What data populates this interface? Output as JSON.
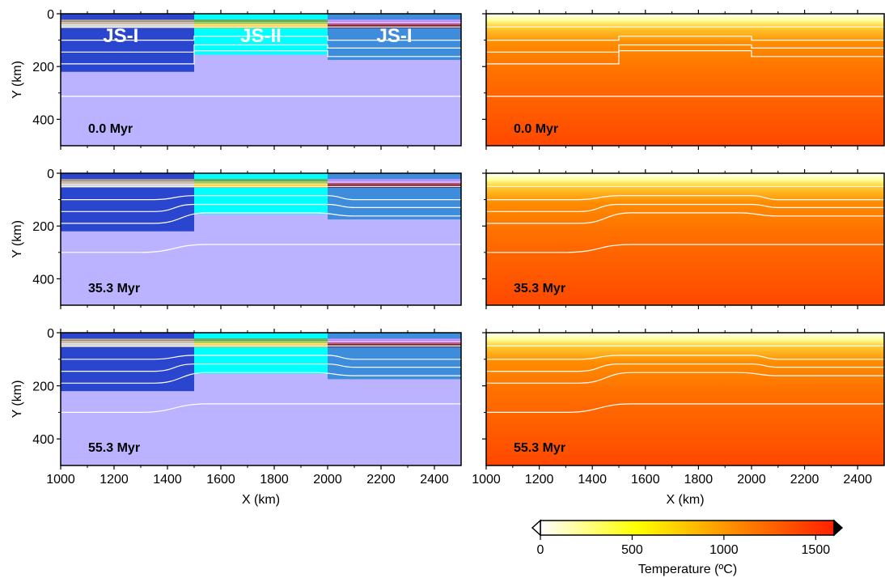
{
  "chart_data": {
    "type": "heatmap",
    "x_axis": {
      "label": "X (km)",
      "range": [
        1000,
        2500
      ],
      "ticks": [
        "1000",
        "1200",
        "1400",
        "1600",
        "1800",
        "2000",
        "2200",
        "2400"
      ]
    },
    "y_axis": {
      "label": "Y (km)",
      "range": [
        0,
        500
      ],
      "inverted": true,
      "ticks": [
        "0",
        "200",
        "400"
      ]
    },
    "time_labels": [
      "0.0 Myr",
      "35.3 Myr",
      "55.3 Myr"
    ],
    "block_labels": [
      {
        "text": "JS-I",
        "x": 1225
      },
      {
        "text": "JS-II",
        "x": 1750
      },
      {
        "text": "JS-I",
        "x": 2250
      }
    ],
    "blocks": [
      {
        "name": "JS-I",
        "x0": 1000,
        "x1": 1500,
        "base_km": 220,
        "color": "#2a46cf"
      },
      {
        "name": "JS-II",
        "x0": 1500,
        "x1": 2000,
        "base_km": 155,
        "color": "#00ffff"
      },
      {
        "name": "JS-I",
        "x0": 2000,
        "x1": 2500,
        "base_km": 175,
        "color": "#3d8ddc"
      }
    ],
    "asthenosphere_color": "#bbb3ff",
    "crust_layers": [
      {
        "x0": 1000,
        "x1": 1500,
        "colors": [
          "#a38a6d",
          "#c7b096",
          "#d6d6d6",
          "#bdbdbd"
        ]
      },
      {
        "x0": 1500,
        "x1": 2000,
        "colors": [
          "#5a8f2f",
          "#8bc34a",
          "#ffd54f",
          "#ffb300"
        ]
      },
      {
        "x0": 2000,
        "x1": 2500,
        "colors": [
          "#b37cff",
          "#d9a2ff",
          "#8e1b2c",
          "#5b1020"
        ]
      }
    ],
    "isotherms": [
      {
        "t_myr": 0.0,
        "lines": [
          [
            [
              1000,
              50
            ],
            [
              2500,
              50
            ]
          ],
          [
            [
              1000,
              100
            ],
            [
              1500,
              100
            ],
            [
              1500,
              85
            ],
            [
              2000,
              85
            ],
            [
              2000,
              100
            ],
            [
              2500,
              100
            ]
          ],
          [
            [
              1000,
              145
            ],
            [
              1500,
              145
            ],
            [
              1500,
              118
            ],
            [
              2000,
              118
            ],
            [
              2000,
              130
            ],
            [
              2500,
              130
            ]
          ],
          [
            [
              1000,
              190
            ],
            [
              1500,
              190
            ],
            [
              1500,
              140
            ],
            [
              2000,
              140
            ],
            [
              2000,
              162
            ],
            [
              2500,
              162
            ]
          ],
          [
            [
              1000,
              313
            ],
            [
              2500,
              313
            ]
          ]
        ]
      },
      {
        "t_myr": 35.3,
        "lines": [
          [
            [
              1000,
              50
            ],
            [
              2500,
              50
            ]
          ],
          [
            [
              1000,
              100
            ],
            [
              1350,
              100
            ],
            [
              1500,
              85
            ],
            [
              2000,
              85
            ],
            [
              2100,
              100
            ],
            [
              2500,
              100
            ]
          ],
          [
            [
              1000,
              145
            ],
            [
              1350,
              145
            ],
            [
              1500,
              118
            ],
            [
              2000,
              118
            ],
            [
              2100,
              130
            ],
            [
              2500,
              130
            ]
          ],
          [
            [
              1000,
              190
            ],
            [
              1350,
              190
            ],
            [
              1550,
              150
            ],
            [
              1950,
              150
            ],
            [
              2100,
              162
            ],
            [
              2500,
              162
            ]
          ],
          [
            [
              1000,
              300
            ],
            [
              1300,
              300
            ],
            [
              1550,
              270
            ],
            [
              2500,
              270
            ]
          ]
        ]
      },
      {
        "t_myr": 55.3,
        "lines": [
          [
            [
              1000,
              50
            ],
            [
              2500,
              50
            ]
          ],
          [
            [
              1000,
              100
            ],
            [
              1350,
              100
            ],
            [
              1500,
              85
            ],
            [
              2000,
              85
            ],
            [
              2100,
              100
            ],
            [
              2500,
              100
            ]
          ],
          [
            [
              1000,
              145
            ],
            [
              1350,
              145
            ],
            [
              1500,
              118
            ],
            [
              2000,
              118
            ],
            [
              2100,
              130
            ],
            [
              2500,
              130
            ]
          ],
          [
            [
              1000,
              190
            ],
            [
              1350,
              190
            ],
            [
              1550,
              150
            ],
            [
              1950,
              150
            ],
            [
              2100,
              162
            ],
            [
              2500,
              162
            ]
          ],
          [
            [
              1000,
              300
            ],
            [
              1300,
              300
            ],
            [
              1550,
              268
            ],
            [
              2500,
              268
            ]
          ]
        ]
      }
    ],
    "colorbar": {
      "label": "Temperature (ºC)",
      "range": [
        0,
        1600
      ],
      "ticks": [
        "0",
        "500",
        "1000",
        "1500"
      ],
      "tick_values": [
        0,
        500,
        1000,
        1500
      ],
      "stops": [
        {
          "v": 0,
          "color": "#ffffff"
        },
        {
          "v": 600,
          "color": "#ffff00"
        },
        {
          "v": 1000,
          "color": "#ff9900"
        },
        {
          "v": 1600,
          "color": "#ff2000"
        }
      ]
    }
  }
}
